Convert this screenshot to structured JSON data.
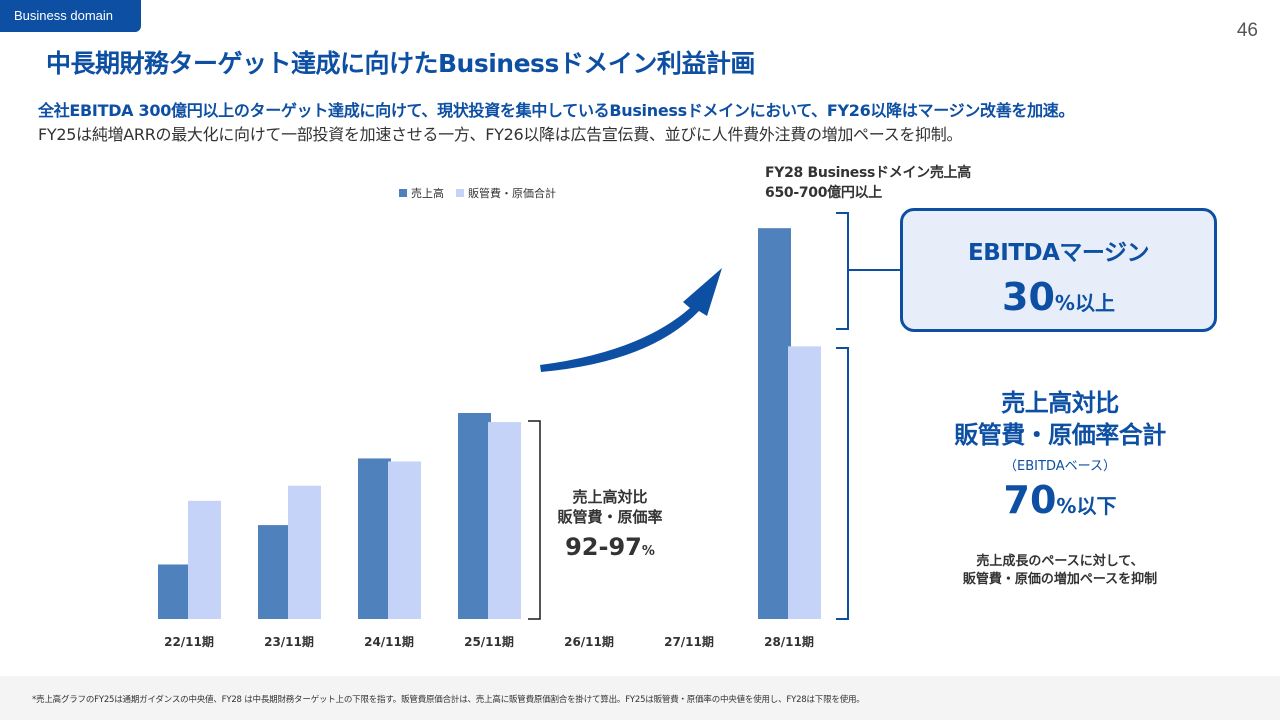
{
  "header": {
    "tag": "Business domain",
    "page_number": "46",
    "title": "中長期財務ターゲット達成に向けたBusinessドメイン利益計画",
    "lead_bold": "全社EBITDA 300億円以上のターゲット達成に向けて、現状投資を集中しているBusinessドメインにおいて、FY26以降はマージン改善を加速。",
    "lead_normal": "FY25は純増ARRの最大化に向けて一部投資を加速させる一方、FY26以降は広告宣伝費、並びに人件費外注費の増加ペースを抑制。"
  },
  "colors": {
    "brand": "#0d4fa3",
    "sales_bar": "#4f81bd",
    "cost_bar": "#c5d3f8"
  },
  "chart_data": {
    "type": "bar",
    "categories": [
      "22/11期",
      "23/11期",
      "24/11期",
      "25/11期",
      "26/11期",
      "27/11期",
      "28/11期"
    ],
    "series": [
      {
        "name": "売上高",
        "values": [
          18,
          31,
          53,
          68,
          null,
          null,
          129
        ]
      },
      {
        "name": "販管費・原価合計",
        "values": [
          39,
          44,
          52,
          65,
          null,
          null,
          90
        ]
      }
    ],
    "ylim": [
      0,
      135
    ],
    "legend_position": "top",
    "annotations": {
      "fy28_label_line1": "FY28 Businessドメイン売上高",
      "fy28_label_line2": "650-700億円以上",
      "mid_line1": "売上高対比",
      "mid_line2": "販管費・原価率",
      "mid_value": "92-97",
      "mid_unit": "%"
    }
  },
  "ebitda_box": {
    "heading": "EBITDAマージン",
    "value": "30",
    "unit": "%以上"
  },
  "cost_ratio": {
    "line1": "売上高対比",
    "line2": "販管費・原価率合計",
    "sub": "（EBITDAベース）",
    "value": "70",
    "unit": "%以下",
    "note_line1": "売上成長のペースに対して、",
    "note_line2": "販管費・原価の増加ペースを抑制"
  },
  "footnote": "*売上高グラフのFY25は通期ガイダンスの中央値、FY28 は中長期財務ターゲット上の下限を指す。販管費原価合計は、売上高に販管費原価割合を掛けて算出。FY25は販管費・原価率の中央値を使用し、FY28は下限を使用。"
}
